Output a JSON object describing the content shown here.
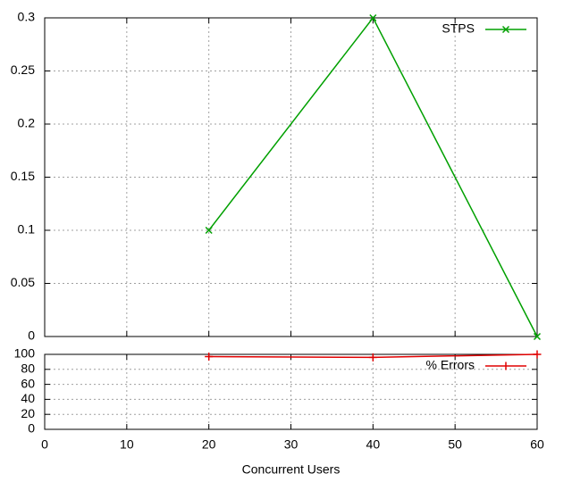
{
  "chart_data": [
    {
      "type": "line",
      "xlim": [
        0,
        60
      ],
      "xticks": [
        0,
        10,
        20,
        30,
        40,
        50,
        60
      ],
      "ylim": [
        0,
        0.3
      ],
      "yticks": [
        0,
        0.05,
        0.1,
        0.15,
        0.2,
        0.25,
        0.3
      ],
      "grid": true,
      "legend": "upper right",
      "x": [
        20,
        40,
        60
      ],
      "series": [
        {
          "name": "STPS",
          "color": "#00a000",
          "marker": "x",
          "values": [
            0.1,
            0.3,
            0
          ]
        }
      ]
    },
    {
      "type": "line",
      "xlabel": "Concurrent Users",
      "xlim": [
        0,
        60
      ],
      "xticks": [
        0,
        10,
        20,
        30,
        40,
        50,
        60
      ],
      "ylim": [
        0,
        100
      ],
      "yticks": [
        0,
        20,
        40,
        60,
        80,
        100
      ],
      "grid": true,
      "legend": "upper right",
      "x": [
        20,
        40,
        60
      ],
      "series": [
        {
          "name": "% Errors",
          "color": "#e00000",
          "marker": "+",
          "values": [
            97,
            96,
            100
          ]
        }
      ]
    }
  ]
}
